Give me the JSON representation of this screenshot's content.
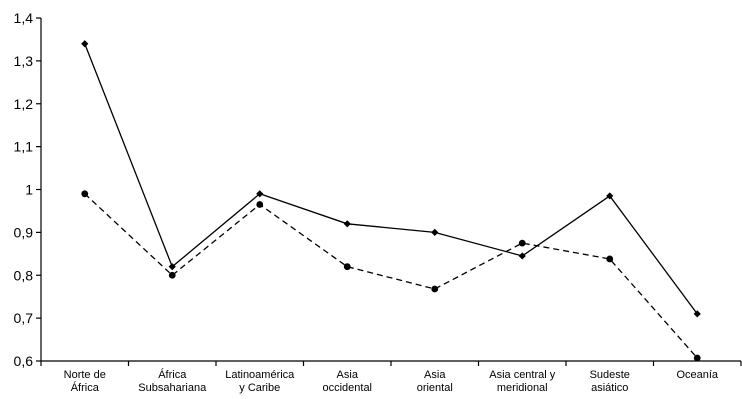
{
  "chart_data": {
    "type": "line",
    "categories": [
      [
        "Norte de",
        "África"
      ],
      [
        "África",
        "Subsahariana"
      ],
      [
        "Latinoamérica",
        "y Caribe"
      ],
      [
        "Asia",
        "occidental"
      ],
      [
        "Asia",
        "oriental"
      ],
      [
        "Asia central y",
        "meridional"
      ],
      [
        "Sudeste",
        "asiático"
      ],
      [
        "Oceanía"
      ]
    ],
    "series": [
      {
        "style": "solid",
        "marker": "diamond",
        "values": [
          1.34,
          0.82,
          0.99,
          0.92,
          0.9,
          0.845,
          0.985,
          0.71
        ]
      },
      {
        "style": "dashed",
        "marker": "circle",
        "values": [
          0.99,
          0.8,
          0.965,
          0.82,
          0.768,
          0.875,
          0.838,
          0.607
        ]
      }
    ],
    "yticks": [
      "0,6",
      "0,7",
      "0,8",
      "0,9",
      "1",
      "1,1",
      "1,2",
      "1,3",
      "1,4"
    ],
    "ylim": [
      0.6,
      1.4
    ],
    "grid": false,
    "legend": "none",
    "line_color": "#000000"
  }
}
